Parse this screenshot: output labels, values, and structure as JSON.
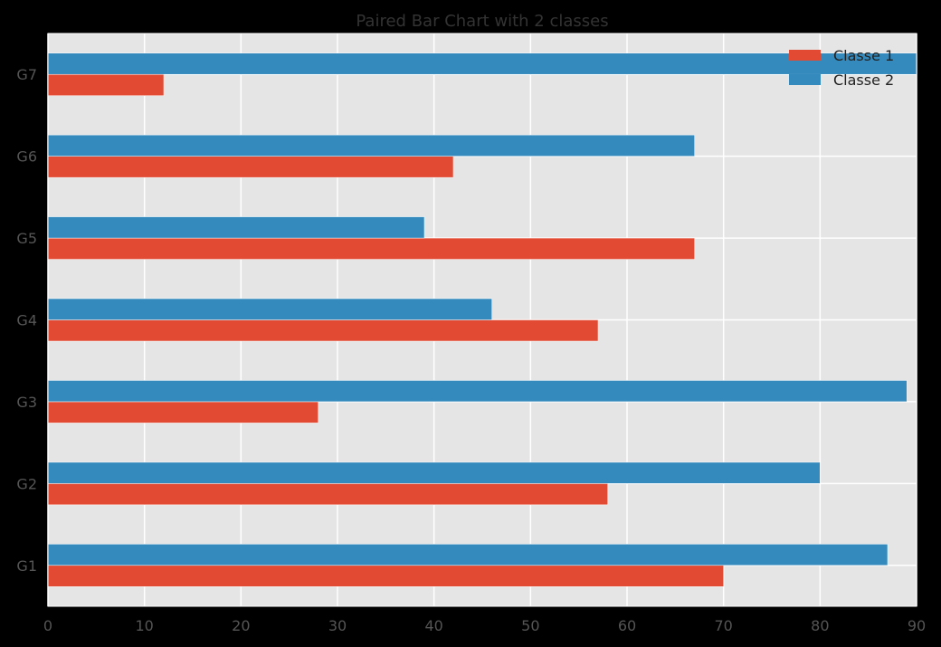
{
  "chart_data": {
    "type": "bar",
    "orientation": "horizontal",
    "title": "Paired Bar Chart with 2 classes",
    "xlabel": "",
    "ylabel": "",
    "categories": [
      "G1",
      "G2",
      "G3",
      "G4",
      "G5",
      "G6",
      "G7"
    ],
    "series": [
      {
        "name": "Classe 1",
        "color": "#E24A33",
        "values": [
          70,
          58,
          28,
          57,
          67,
          42,
          12
        ]
      },
      {
        "name": "Classe 2",
        "color": "#348ABD",
        "values": [
          87,
          80,
          89,
          46,
          39,
          67,
          90
        ]
      }
    ],
    "xlim": [
      0,
      90
    ],
    "xticks": [
      "0",
      "10",
      "20",
      "30",
      "40",
      "50",
      "60",
      "70",
      "80",
      "90"
    ],
    "grid": true,
    "legend": "top-right",
    "colors": {
      "background": "#000000",
      "plot_area": "#E5E5E5",
      "grid": "#FFFFFF"
    }
  }
}
